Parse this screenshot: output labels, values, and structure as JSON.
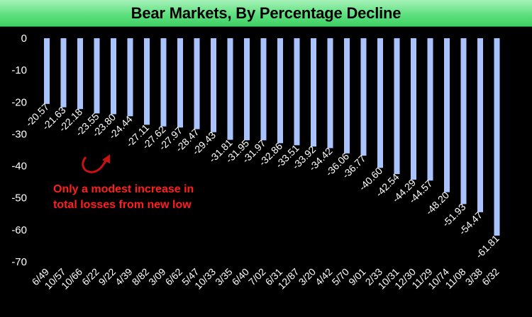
{
  "title": "Bear Markets, By Percentage Decline",
  "colors": {
    "bar": "#a9c3ff",
    "background": "#000000",
    "text": "#ffffff",
    "annotation": "#ff1f1f",
    "arrow": "#cc1111"
  },
  "annotation": {
    "line1": "Only a modest increase in",
    "line2": "total losses from new low"
  },
  "chart_data": {
    "type": "bar",
    "title": "Bear Markets, By Percentage Decline",
    "xlabel": "",
    "ylabel": "",
    "ylim": [
      -70,
      0
    ],
    "yticks": [
      "0",
      "-10",
      "-20",
      "-30",
      "-40",
      "-50",
      "-60",
      "-70"
    ],
    "grid": false,
    "categories": [
      "6/49",
      "10/57",
      "10/66",
      "6/22",
      "9/22",
      "4/39",
      "8/82",
      "3/09",
      "6/62",
      "5/47",
      "10/33",
      "3/35",
      "6/40",
      "7/02",
      "6/31",
      "12/87",
      "3/20",
      "4/42",
      "5/70",
      "9/01",
      "2/33",
      "10/31",
      "12/30",
      "11/29",
      "10/74",
      "11/08",
      "3/38",
      "6/32"
    ],
    "values": [
      -20.57,
      -21.63,
      -22.18,
      -23.55,
      -23.8,
      -24.44,
      -27.11,
      -27.62,
      -27.97,
      -28.47,
      -29.43,
      -31.81,
      -31.95,
      -31.97,
      -32.86,
      -33.51,
      -33.92,
      -34.42,
      -36.06,
      -36.77,
      -40.6,
      -42.54,
      -44.29,
      -44.57,
      -48.2,
      -51.93,
      -54.47,
      -61.81
    ],
    "data_labels": [
      "-20.57",
      "-21.63",
      "-22.18",
      "-23.55",
      "-23.80",
      "-24.44",
      "-27.11",
      "-27.62",
      "-27.97",
      "-28.47",
      "-29.43",
      "-31.81",
      "-31.95",
      "-31.97",
      "-32.86",
      "-33.51",
      "-33.92",
      "-34.42",
      "-36.06",
      "-36.77",
      "-40.60",
      "-42.54",
      "-44.29",
      "-44.57",
      "-48.20",
      "-51.93",
      "-54.47",
      "-61.81"
    ]
  }
}
